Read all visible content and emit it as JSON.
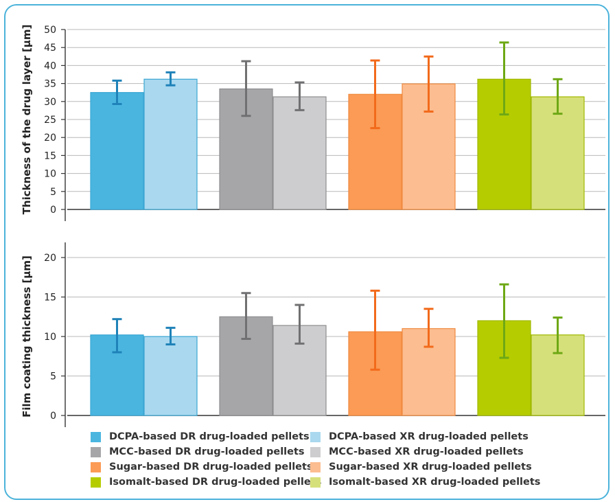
{
  "colors": {
    "frame": "#4bb3da",
    "axis": "#333333",
    "grid": "#b8b8b8"
  },
  "chart_data": [
    {
      "type": "bar",
      "ylabel": "Thickness of the drug layer [µm]",
      "ylim": [
        0,
        50
      ],
      "yticks": [
        0,
        5,
        10,
        15,
        20,
        25,
        30,
        35,
        40,
        45,
        50
      ],
      "grid": true,
      "series": [
        {
          "name": "DCPA-based DR drug-loaded pellets",
          "fill": "#4ab6e0",
          "stroke": "#3aa6d2",
          "err": "#1f82b8",
          "value": 32.5,
          "err_low": 29.3,
          "err_high": 35.8
        },
        {
          "name": "DCPA-based XR drug-loaded pellets",
          "fill": "#a9d8ef",
          "stroke": "#3aa6d2",
          "err": "#1f82b8",
          "value": 36.2,
          "err_low": 34.5,
          "err_high": 38.1
        },
        {
          "name": "MCC-based DR drug-loaded pellets",
          "fill": "#a6a6a8",
          "stroke": "#8e8e90",
          "err": "#707072",
          "value": 33.5,
          "err_low": 26.0,
          "err_high": 41.2
        },
        {
          "name": "MCC-based XR drug-loaded pellets",
          "fill": "#cdcdcf",
          "stroke": "#8e8e90",
          "err": "#707072",
          "value": 31.3,
          "err_low": 27.6,
          "err_high": 35.3
        },
        {
          "name": "Sugar-based DR drug-loaded pellets",
          "fill": "#fb9b55",
          "stroke": "#f08a3f",
          "err": "#f26a1b",
          "value": 32.0,
          "err_low": 22.6,
          "err_high": 41.4
        },
        {
          "name": "Sugar-based XR drug-loaded pellets",
          "fill": "#fcbd90",
          "stroke": "#f08a3f",
          "err": "#f26a1b",
          "value": 34.9,
          "err_low": 27.2,
          "err_high": 42.5
        },
        {
          "name": "Isomalt-based DR drug-loaded pellets",
          "fill": "#b5cd00",
          "stroke": "#9fb800",
          "err": "#6ea815",
          "value": 36.2,
          "err_low": 26.4,
          "err_high": 46.4
        },
        {
          "name": "Isomalt-based XR drug-loaded pellets",
          "fill": "#d6e07a",
          "stroke": "#9fb800",
          "err": "#6ea815",
          "value": 31.3,
          "err_low": 26.6,
          "err_high": 36.2
        }
      ]
    },
    {
      "type": "bar",
      "ylabel": "Film coating thickness [µm]",
      "ylim": [
        0,
        20
      ],
      "yticks": [
        0,
        5,
        10,
        15,
        20
      ],
      "grid": true,
      "series": [
        {
          "name": "DCPA-based DR drug-loaded pellets",
          "fill": "#4ab6e0",
          "stroke": "#3aa6d2",
          "err": "#1f82b8",
          "value": 10.2,
          "err_low": 8.0,
          "err_high": 12.2
        },
        {
          "name": "DCPA-based XR drug-loaded pellets",
          "fill": "#a9d8ef",
          "stroke": "#3aa6d2",
          "err": "#1f82b8",
          "value": 10.0,
          "err_low": 9.0,
          "err_high": 11.1
        },
        {
          "name": "MCC-based DR drug-loaded pellets",
          "fill": "#a6a6a8",
          "stroke": "#8e8e90",
          "err": "#707072",
          "value": 12.5,
          "err_low": 9.7,
          "err_high": 15.5
        },
        {
          "name": "MCC-based XR drug-loaded pellets",
          "fill": "#cdcdcf",
          "stroke": "#8e8e90",
          "err": "#707072",
          "value": 11.4,
          "err_low": 9.1,
          "err_high": 14.0
        },
        {
          "name": "Sugar-based DR drug-loaded pellets",
          "fill": "#fb9b55",
          "stroke": "#f08a3f",
          "err": "#f26a1b",
          "value": 10.6,
          "err_low": 5.8,
          "err_high": 15.8
        },
        {
          "name": "Sugar-based XR drug-loaded pellets",
          "fill": "#fcbd90",
          "stroke": "#f08a3f",
          "err": "#f26a1b",
          "value": 11.0,
          "err_low": 8.7,
          "err_high": 13.5
        },
        {
          "name": "Isomalt-based DR drug-loaded pellets",
          "fill": "#b5cd00",
          "stroke": "#9fb800",
          "err": "#6ea815",
          "value": 12.0,
          "err_low": 7.3,
          "err_high": 16.6
        },
        {
          "name": "Isomalt-based XR drug-loaded pellets",
          "fill": "#d6e07a",
          "stroke": "#9fb800",
          "err": "#6ea815",
          "value": 10.2,
          "err_low": 7.9,
          "err_high": 12.4
        }
      ]
    }
  ],
  "legend": [
    {
      "label": "DCPA-based DR drug-loaded pellets",
      "color": "#4ab6e0"
    },
    {
      "label": "DCPA-based XR drug-loaded pellets",
      "color": "#a9d8ef"
    },
    {
      "label": "MCC-based DR drug-loaded pellets",
      "color": "#a6a6a8"
    },
    {
      "label": "MCC-based XR drug-loaded pellets",
      "color": "#cdcdcf"
    },
    {
      "label": "Sugar-based DR drug-loaded pellets",
      "color": "#fb9b55"
    },
    {
      "label": "Sugar-based XR drug-loaded pellets",
      "color": "#fcbd90"
    },
    {
      "label": "Isomalt-based DR drug-loaded pellets",
      "color": "#b5cd00"
    },
    {
      "label": "Isomalt-based XR drug-loaded pellets",
      "color": "#d6e07a"
    }
  ]
}
